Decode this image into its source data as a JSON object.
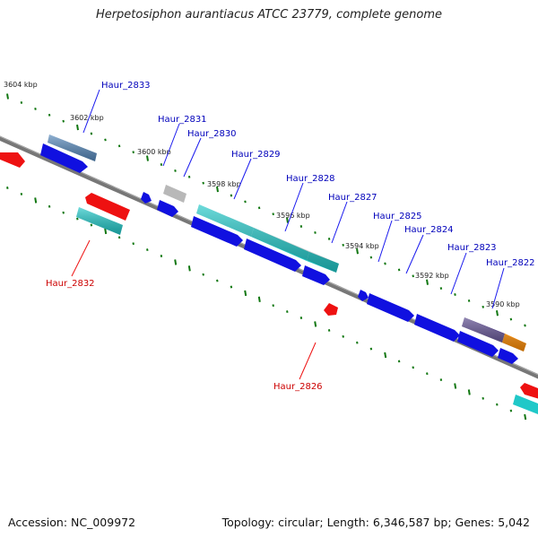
{
  "title": "Herpetosiphon aurantiacus ATCC 23779, complete genome",
  "footer": {
    "accession": "Accession: NC_009972",
    "summary": "Topology: circular; Length: 6,346,587 bp; Genes: 5,042"
  },
  "colors": {
    "blue": "#1010e0",
    "red": "#ee1111",
    "cyan": "#20c8c8",
    "steel": "#5588bb",
    "gray": "#b8b8b8",
    "purple": "#554488",
    "orange": "#ff8c00",
    "backbone": "#777777",
    "tick": "#117711",
    "label_blue": "#0000bb",
    "label_red": "#cc0000"
  },
  "scale_labels": [
    "3604 kbp",
    "3602 kbp",
    "3600 kbp",
    "3598 kbp",
    "3596 kbp",
    "3594 kbp",
    "3592 kbp",
    "3590 kbp"
  ],
  "gene_labels": [
    {
      "text": "Haur_2833",
      "strand": "forward"
    },
    {
      "text": "Haur_2831",
      "strand": "forward"
    },
    {
      "text": "Haur_2830",
      "strand": "forward"
    },
    {
      "text": "Haur_2829",
      "strand": "forward"
    },
    {
      "text": "Haur_2828",
      "strand": "forward"
    },
    {
      "text": "Haur_2827",
      "strand": "forward"
    },
    {
      "text": "Haur_2825",
      "strand": "forward"
    },
    {
      "text": "Haur_2824",
      "strand": "forward"
    },
    {
      "text": "Haur_2823",
      "strand": "forward"
    },
    {
      "text": "Haur_2822",
      "strand": "forward"
    },
    {
      "text": "Haur_2832",
      "strand": "reverse"
    },
    {
      "text": "Haur_2826",
      "strand": "reverse"
    }
  ]
}
